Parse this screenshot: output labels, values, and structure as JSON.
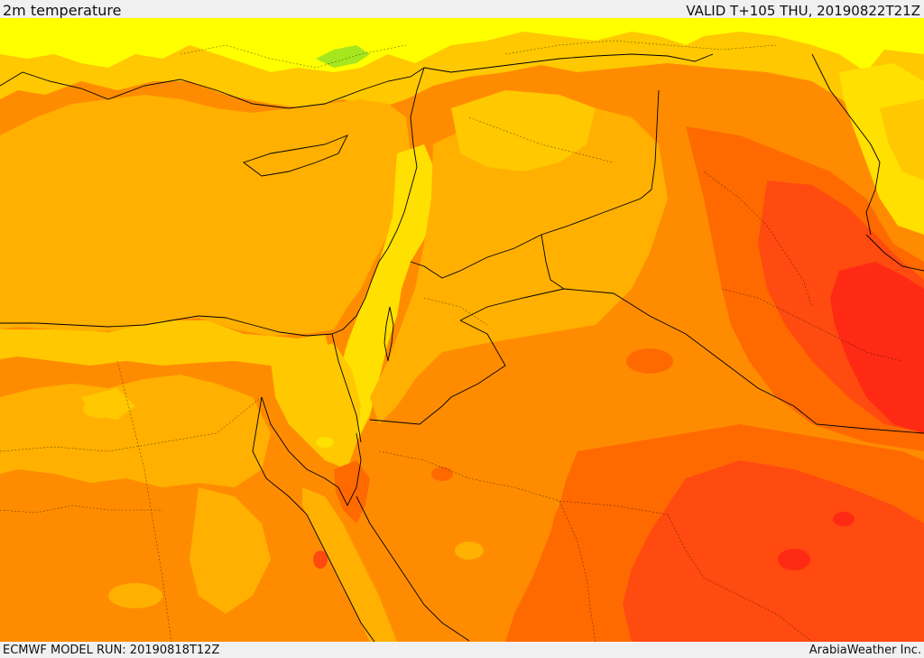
{
  "header": {
    "field_title": "2m temperature",
    "valid_time": "VALID T+105 THU, 20190822T21Z"
  },
  "footer": {
    "model_run": "ECMWF MODEL RUN: 20190818T12Z",
    "credit": "ArabiaWeather Inc."
  },
  "map": {
    "variable": "2m temperature",
    "colors": {
      "green": "#a6e61e",
      "yellow": "#ffff00",
      "light_yellow_orange": "#ffe000",
      "yellow_orange": "#ffc800",
      "light_orange": "#ffb000",
      "orange": "#ff8c00",
      "dark_orange": "#ff6a00",
      "red_orange": "#ff4a10",
      "red": "#ff2a14",
      "border": "#000000"
    }
  }
}
